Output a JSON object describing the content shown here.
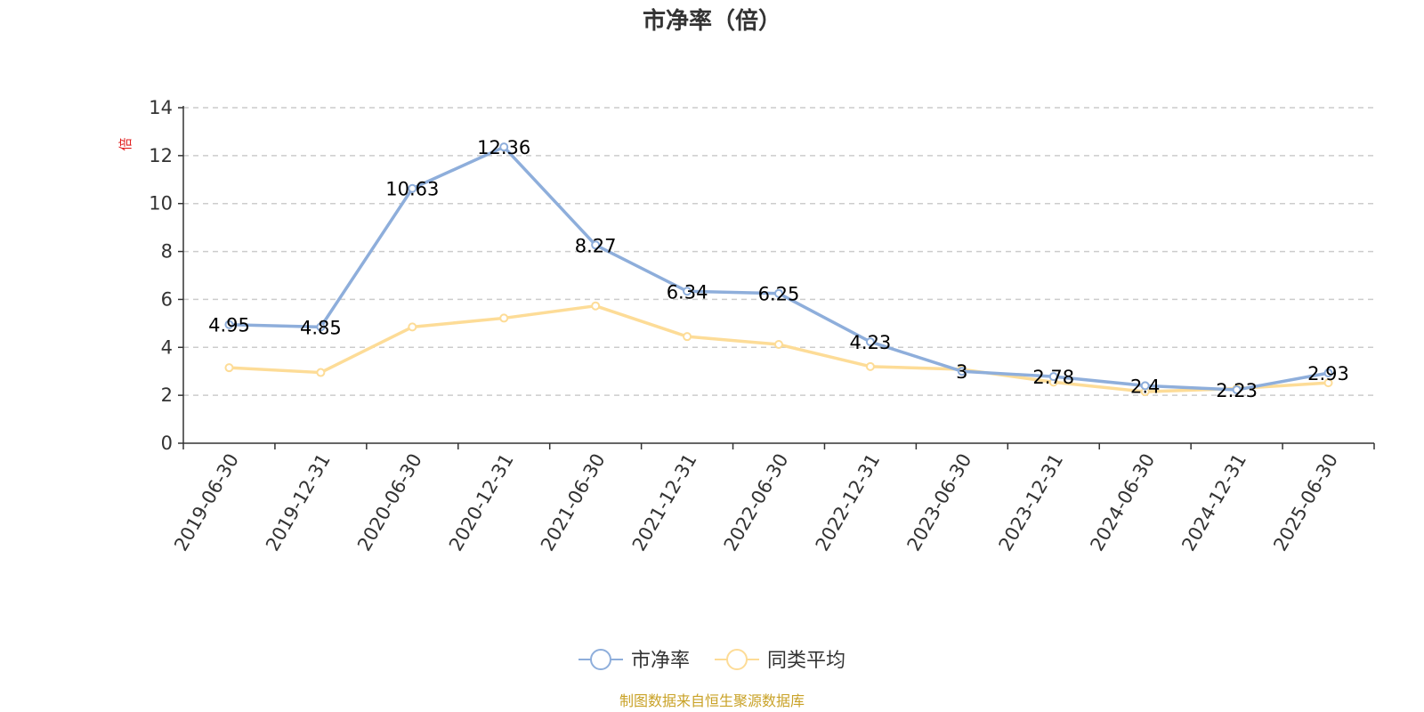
{
  "colors": {
    "series_pb": "#8eaedb",
    "series_avg": "#fddc97",
    "axis": "#333333",
    "grid": "#cccccc",
    "unit": "#e02020",
    "footer": "#c9a227"
  },
  "footer": {
    "source": "制图数据来自恒生聚源数据库"
  },
  "chart_data": {
    "type": "line",
    "title": "市净率（倍）",
    "ylabel": "倍",
    "xlabel": "",
    "ylim": [
      0,
      14
    ],
    "yticks": [
      0,
      2,
      4,
      6,
      8,
      10,
      12,
      14
    ],
    "grid": true,
    "legend_position": "bottom-center",
    "categories": [
      "2019-06-30",
      "2019-12-31",
      "2020-06-30",
      "2020-12-31",
      "2021-06-30",
      "2021-12-31",
      "2022-06-30",
      "2022-12-31",
      "2023-06-30",
      "2023-12-31",
      "2024-06-30",
      "2024-12-31",
      "2025-06-30"
    ],
    "series": [
      {
        "name": "市净率",
        "color_key": "series_pb",
        "values": [
          4.95,
          4.85,
          10.63,
          12.36,
          8.27,
          6.34,
          6.25,
          4.23,
          3,
          2.78,
          2.4,
          2.23,
          2.93
        ],
        "labels": [
          "4.95",
          "4.85",
          "10.63",
          "12.36",
          "8.27",
          "6.34",
          "6.25",
          "4.23",
          "3",
          "2.78",
          "2.4",
          "2.23",
          "2.93"
        ]
      },
      {
        "name": "同类平均",
        "color_key": "series_avg",
        "values": [
          3.15,
          2.95,
          4.85,
          5.22,
          5.73,
          4.45,
          4.12,
          3.2,
          3.08,
          2.55,
          2.15,
          2.28,
          2.52
        ]
      }
    ]
  }
}
